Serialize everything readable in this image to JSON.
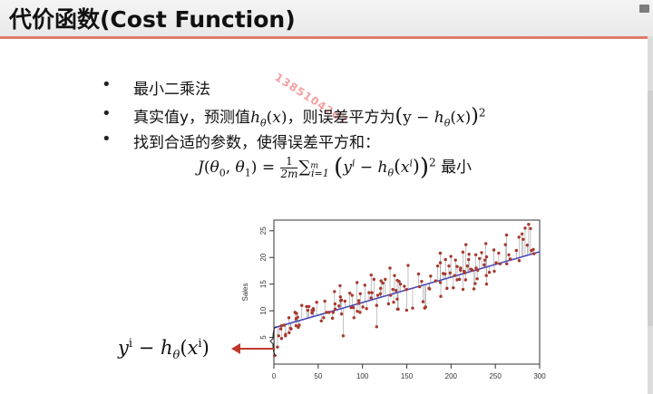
{
  "slide": {
    "title": "代价函数(Cost Function)",
    "watermark": "13851042​07",
    "bullet_char": "•",
    "bullets": [
      {
        "text": "最小二乘法"
      },
      {
        "prefix": "真实值y，预测值",
        "middle": "，则误差平方为"
      },
      {
        "text": "找到合适的参数，使得误差平方和："
      }
    ],
    "formula_suffix": "最小",
    "left_label": "yⁱ − h_θ(xⁱ)"
  },
  "chart_data": {
    "type": "scatter",
    "title": "",
    "xlabel": "",
    "ylabel": "Sales",
    "xlim": [
      0,
      300
    ],
    "ylim": [
      0,
      27
    ],
    "x_ticks": [
      "0",
      "50",
      "100",
      "150",
      "200",
      "250",
      "300"
    ],
    "y_ticks": [
      "5",
      "10",
      "15",
      "20",
      "25"
    ],
    "regression_line": {
      "intercept": 6.8,
      "slope": 0.0475,
      "color": "#4a4ab8"
    },
    "point_color": "#a8382e",
    "points": [
      [
        0.7,
        1.6
      ],
      [
        4,
        3.2
      ],
      [
        5.4,
        5.3
      ],
      [
        7.8,
        6.6
      ],
      [
        8.6,
        4.8
      ],
      [
        8.7,
        7.2
      ],
      [
        11.7,
        7.3
      ],
      [
        13.1,
        5.3
      ],
      [
        13.2,
        5.6
      ],
      [
        16.9,
        8.7
      ],
      [
        17.2,
        5.9
      ],
      [
        18.7,
        6.7
      ],
      [
        19.4,
        6.6
      ],
      [
        23.8,
        9.7
      ],
      [
        25,
        7.2
      ],
      [
        25.1,
        8.5
      ],
      [
        25.6,
        9.5
      ],
      [
        26.8,
        8.8
      ],
      [
        27.5,
        6.9
      ],
      [
        28.6,
        7.3
      ],
      [
        31.5,
        11
      ],
      [
        36.9,
        10.8
      ],
      [
        38.2,
        10.1
      ],
      [
        39.5,
        10.8
      ],
      [
        43,
        9.6
      ],
      [
        43.1,
        10.1
      ],
      [
        44.5,
        10.4
      ],
      [
        44.7,
        10.1
      ],
      [
        48.3,
        11.6
      ],
      [
        53.5,
        8.1
      ],
      [
        56.2,
        8.7
      ],
      [
        57.5,
        11.8
      ],
      [
        59.6,
        9.7
      ],
      [
        62.3,
        9.7
      ],
      [
        66.1,
        8.6
      ],
      [
        66.9,
        9.7
      ],
      [
        68.4,
        13.6
      ],
      [
        69,
        11.3
      ],
      [
        69.2,
        10.3
      ],
      [
        73.4,
        10.9
      ],
      [
        74.7,
        14.7
      ],
      [
        75.1,
        12.6
      ],
      [
        75.3,
        11.9
      ],
      [
        76.3,
        12
      ],
      [
        76.4,
        9.4
      ],
      [
        78.2,
        5.3
      ],
      [
        80.2,
        11.8
      ],
      [
        85.7,
        13.3
      ],
      [
        87.2,
        10.6
      ],
      [
        88.3,
        12.9
      ],
      [
        89.7,
        10.6
      ],
      [
        90.4,
        8.7
      ],
      [
        93.9,
        15.3
      ],
      [
        94.2,
        9.9
      ],
      [
        95.7,
        11.9
      ],
      [
        96.2,
        11.4
      ],
      [
        97.2,
        9.7
      ],
      [
        97.5,
        13.2
      ],
      [
        100.4,
        10.7
      ],
      [
        102.7,
        14.8
      ],
      [
        104.6,
        10.4
      ],
      [
        107.4,
        13.4
      ],
      [
        109.8,
        12.4
      ],
      [
        110.7,
        13.4
      ],
      [
        112.9,
        15.9
      ],
      [
        116,
        11
      ],
      [
        117.2,
        12.9
      ],
      [
        120.2,
        13.2
      ],
      [
        120.5,
        14.2
      ],
      [
        121,
        15.6
      ],
      [
        123.1,
        15.2
      ],
      [
        125.7,
        15.9
      ],
      [
        129.4,
        11.3
      ],
      [
        131.1,
        18
      ],
      [
        131.7,
        12.9
      ],
      [
        134.3,
        14
      ],
      [
        135.2,
        11.6
      ],
      [
        136.2,
        16.6
      ],
      [
        137.9,
        13.8
      ],
      [
        139.2,
        12.2
      ],
      [
        139.3,
        15.7
      ],
      [
        139.5,
        10.3
      ],
      [
        140.3,
        10.3
      ],
      [
        141.3,
        15.5
      ],
      [
        142.9,
        15
      ],
      [
        147.3,
        14.6
      ],
      [
        149.7,
        14
      ],
      [
        149.8,
        10.1
      ],
      [
        151.5,
        18.5
      ],
      [
        156.6,
        10.5
      ],
      [
        163.3,
        16.9
      ],
      [
        164.5,
        14.5
      ],
      [
        166.8,
        15.5
      ],
      [
        168.4,
        11.7
      ],
      [
        170.2,
        10.5
      ],
      [
        171.3,
        10.7
      ],
      [
        175.1,
        14.2
      ],
      [
        175.7,
        14.1
      ],
      [
        177,
        16.5
      ],
      [
        182.6,
        15.6
      ],
      [
        184.9,
        18.4
      ],
      [
        187.8,
        20.8
      ],
      [
        187.9,
        15.3
      ],
      [
        188.4,
        12.7
      ],
      [
        191.1,
        17
      ],
      [
        193.2,
        16.9
      ],
      [
        193.7,
        19.6
      ],
      [
        195.4,
        14.2
      ],
      [
        197.6,
        18.4
      ],
      [
        198.9,
        17.1
      ],
      [
        199.8,
        20.2
      ],
      [
        202.5,
        14.3
      ],
      [
        204.1,
        16.6
      ],
      [
        205,
        19.5
      ],
      [
        206.8,
        15.8
      ],
      [
        206.9,
        18.3
      ],
      [
        209.6,
        15.9
      ],
      [
        210.7,
        17.6
      ],
      [
        210.8,
        18
      ],
      [
        213.4,
        21
      ],
      [
        213.5,
        14
      ],
      [
        214.7,
        17.4
      ],
      [
        215.4,
        17.1
      ],
      [
        216.4,
        15.8
      ],
      [
        216.8,
        22.4
      ],
      [
        218.4,
        18.4
      ],
      [
        219.8,
        19.6
      ],
      [
        220.3,
        20.6
      ],
      [
        222.4,
        17.8
      ],
      [
        224,
        17.6
      ],
      [
        225.8,
        14.1
      ],
      [
        227.2,
        15.1
      ],
      [
        228,
        20.5
      ],
      [
        228.3,
        18
      ],
      [
        229.5,
        16
      ],
      [
        230.1,
        17.6
      ],
      [
        232.1,
        19.8
      ],
      [
        234.5,
        20.9
      ],
      [
        237.4,
        18.6
      ],
      [
        238.2,
        19.5
      ],
      [
        239.3,
        22.6
      ],
      [
        239.8,
        16.6
      ],
      [
        240.1,
        20.1
      ],
      [
        243.2,
        17.2
      ],
      [
        248.4,
        21.4
      ],
      [
        248.8,
        17.4
      ],
      [
        250.9,
        19
      ],
      [
        253.8,
        20.8
      ],
      [
        255.4,
        18.8
      ],
      [
        261.3,
        22.4
      ],
      [
        262.7,
        24.2
      ],
      [
        262.9,
        18.8
      ],
      [
        265.2,
        20.5
      ],
      [
        266.9,
        19.7
      ],
      [
        273.7,
        21.3
      ],
      [
        276.7,
        23.8
      ],
      [
        276.9,
        19.4
      ],
      [
        280.2,
        24.4
      ],
      [
        281.4,
        23.4
      ],
      [
        283.6,
        25.5
      ],
      [
        286,
        22.3
      ],
      [
        287.6,
        26.2
      ],
      [
        289.7,
        25.4
      ],
      [
        290.7,
        21.3
      ],
      [
        292.9,
        21.5
      ],
      [
        293.6,
        20.7
      ],
      [
        109.8,
        16.7
      ],
      [
        116,
        7
      ],
      [
        187.9,
        19
      ],
      [
        240.1,
        15
      ]
    ]
  }
}
